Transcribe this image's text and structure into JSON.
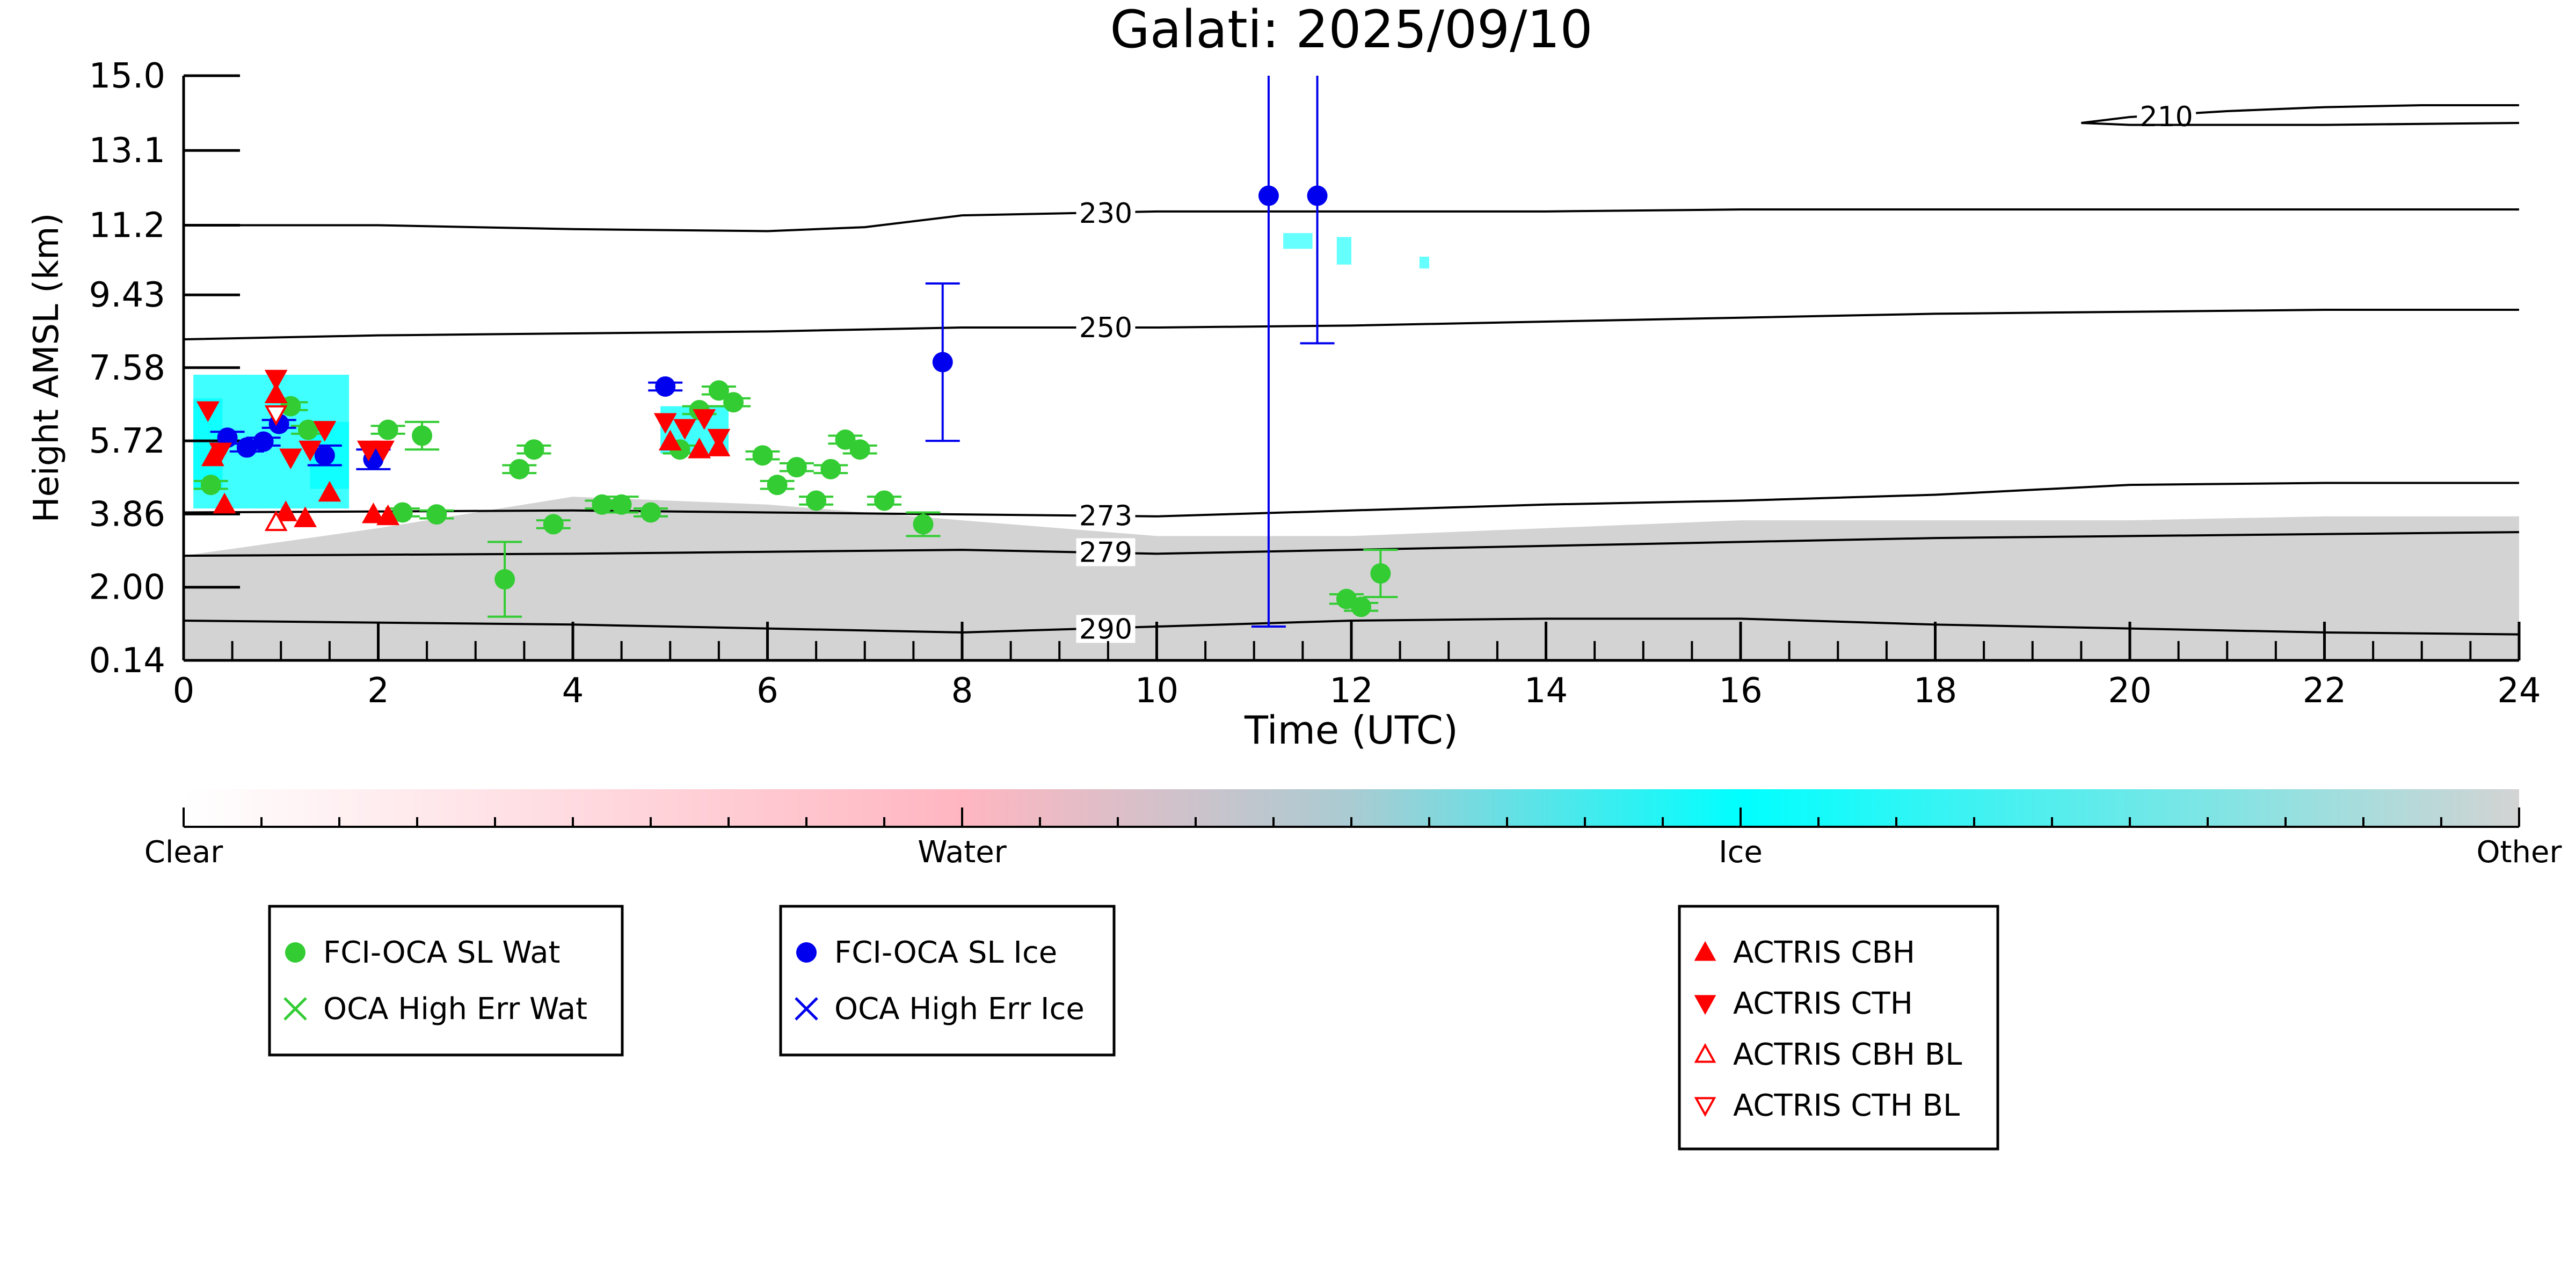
{
  "chart_data": {
    "type": "scatter",
    "title": "Galati: 2025/09/10",
    "xlabel": "Time (UTC)",
    "ylabel": "Height AMSL (km)",
    "xlim": [
      0,
      24
    ],
    "ylim": [
      0.14,
      15.0
    ],
    "x_ticks": [
      0,
      2,
      4,
      6,
      8,
      10,
      12,
      14,
      16,
      18,
      20,
      22,
      24
    ],
    "y_ticks": [
      0.14,
      2.0,
      3.86,
      5.72,
      7.58,
      9.43,
      11.2,
      13.1,
      15.0
    ],
    "y_tick_labels": [
      "0.14",
      "2.00",
      "3.86",
      "5.72",
      "7.58",
      "9.43",
      "11.2",
      "13.1",
      "15.0"
    ],
    "grid": false,
    "isotherms": [
      {
        "label": "290",
        "label_x": 9.2,
        "points": [
          [
            0,
            1.15
          ],
          [
            4,
            1.05
          ],
          [
            6,
            0.95
          ],
          [
            8,
            0.85
          ],
          [
            10,
            1.0
          ],
          [
            12,
            1.15
          ],
          [
            14,
            1.2
          ],
          [
            16,
            1.2
          ],
          [
            18,
            1.05
          ],
          [
            20,
            0.95
          ],
          [
            22,
            0.85
          ],
          [
            24,
            0.8
          ]
        ]
      },
      {
        "label": "279",
        "label_x": 9.2,
        "points": [
          [
            0,
            2.8
          ],
          [
            4,
            2.85
          ],
          [
            6,
            2.9
          ],
          [
            8,
            2.95
          ],
          [
            10,
            2.85
          ],
          [
            12,
            2.95
          ],
          [
            14,
            3.05
          ],
          [
            16,
            3.15
          ],
          [
            18,
            3.25
          ],
          [
            20,
            3.3
          ],
          [
            22,
            3.35
          ],
          [
            24,
            3.4
          ]
        ]
      },
      {
        "label": "273",
        "label_x": 9.2,
        "points": [
          [
            0,
            3.9
          ],
          [
            4,
            3.95
          ],
          [
            6,
            3.9
          ],
          [
            8,
            3.85
          ],
          [
            10,
            3.8
          ],
          [
            12,
            3.95
          ],
          [
            14,
            4.1
          ],
          [
            16,
            4.2
          ],
          [
            18,
            4.35
          ],
          [
            20,
            4.6
          ],
          [
            22,
            4.65
          ],
          [
            24,
            4.65
          ]
        ]
      },
      {
        "label": "250",
        "label_x": 9.2,
        "points": [
          [
            0,
            8.3
          ],
          [
            2,
            8.4
          ],
          [
            4,
            8.45
          ],
          [
            6,
            8.5
          ],
          [
            8,
            8.6
          ],
          [
            10,
            8.6
          ],
          [
            12,
            8.65
          ],
          [
            14,
            8.75
          ],
          [
            16,
            8.85
          ],
          [
            18,
            8.95
          ],
          [
            20,
            9.0
          ],
          [
            22,
            9.05
          ],
          [
            24,
            9.05
          ]
        ]
      },
      {
        "label": "230",
        "label_x": 9.2,
        "points": [
          [
            0,
            11.2
          ],
          [
            2,
            11.2
          ],
          [
            4,
            11.1
          ],
          [
            6,
            11.05
          ],
          [
            7,
            11.15
          ],
          [
            8,
            11.45
          ],
          [
            9,
            11.5
          ],
          [
            10,
            11.55
          ],
          [
            12,
            11.55
          ],
          [
            14,
            11.55
          ],
          [
            16,
            11.6
          ],
          [
            18,
            11.6
          ],
          [
            20,
            11.6
          ],
          [
            22,
            11.6
          ],
          [
            24,
            11.6
          ]
        ]
      },
      {
        "label": "210",
        "label_x": 20.1,
        "points": [
          [
            19.5,
            13.8
          ],
          [
            20,
            13.95
          ],
          [
            21,
            14.1
          ],
          [
            22,
            14.2
          ],
          [
            23,
            14.25
          ],
          [
            24,
            14.25
          ]
        ]
      },
      {
        "label": "",
        "label_x": 0,
        "points": [
          [
            19.5,
            13.8
          ],
          [
            20,
            13.75
          ],
          [
            22,
            13.75
          ],
          [
            24,
            13.8
          ]
        ]
      }
    ],
    "colorbar": {
      "labels": [
        "Clear",
        "Water",
        "Ice",
        "Other"
      ],
      "stops": [
        {
          "pos": 0.0,
          "color": "#ffffff"
        },
        {
          "pos": 0.333,
          "color": "#ffb6c1"
        },
        {
          "pos": 0.5,
          "color": "#aacbd2"
        },
        {
          "pos": 0.667,
          "color": "#00ffff"
        },
        {
          "pos": 1.0,
          "color": "#d3d3d3"
        }
      ]
    },
    "background_colors": {
      "other": "#d3d3d3",
      "ice": "#00ffff",
      "water": "#ffb6c1"
    },
    "series": [
      {
        "name": "FCI-OCA SL Wat",
        "marker": "circle",
        "color": "#33cc33",
        "points": [
          {
            "x": 0.28,
            "y": 4.6,
            "err": 0.1
          },
          {
            "x": 1.1,
            "y": 6.6,
            "err": 0.1
          },
          {
            "x": 1.28,
            "y": 6.0,
            "err": 0.1
          },
          {
            "x": 2.1,
            "y": 6.0,
            "err": 0.1
          },
          {
            "x": 2.45,
            "y": 5.85,
            "err": 0.35
          },
          {
            "x": 2.25,
            "y": 3.9,
            "err": 0.1
          },
          {
            "x": 2.6,
            "y": 3.85,
            "err": 0.1
          },
          {
            "x": 3.3,
            "y": 2.2,
            "err": 0.95
          },
          {
            "x": 3.45,
            "y": 5.0,
            "err": 0.1
          },
          {
            "x": 3.6,
            "y": 5.5,
            "err": 0.1
          },
          {
            "x": 3.8,
            "y": 3.6,
            "err": 0.1
          },
          {
            "x": 4.3,
            "y": 4.1,
            "err": 0.1
          },
          {
            "x": 4.5,
            "y": 4.1,
            "err": 0.2
          },
          {
            "x": 4.8,
            "y": 3.9,
            "err": 0.1
          },
          {
            "x": 5.1,
            "y": 5.5,
            "err": 0.1
          },
          {
            "x": 5.3,
            "y": 6.5,
            "err": 0.1
          },
          {
            "x": 5.5,
            "y": 7.0,
            "err": 0.1
          },
          {
            "x": 5.65,
            "y": 6.7,
            "err": 0.1
          },
          {
            "x": 5.95,
            "y": 5.35,
            "err": 0.1
          },
          {
            "x": 6.1,
            "y": 4.6,
            "err": 0.1
          },
          {
            "x": 6.3,
            "y": 5.05,
            "err": 0.1
          },
          {
            "x": 6.5,
            "y": 4.2,
            "err": 0.1
          },
          {
            "x": 6.65,
            "y": 5.0,
            "err": 0.1
          },
          {
            "x": 6.8,
            "y": 5.75,
            "err": 0.1
          },
          {
            "x": 6.95,
            "y": 5.5,
            "err": 0.1
          },
          {
            "x": 7.2,
            "y": 4.2,
            "err": 0.1
          },
          {
            "x": 7.6,
            "y": 3.6,
            "err": 0.3
          },
          {
            "x": 11.95,
            "y": 1.7,
            "err": 0.12
          },
          {
            "x": 12.1,
            "y": 1.5,
            "err": 0.1
          },
          {
            "x": 12.3,
            "y": 2.35,
            "err": 0.6
          }
        ]
      },
      {
        "name": "OCA High Err Wat",
        "marker": "x",
        "color": "#33cc33",
        "points": []
      },
      {
        "name": "FCI-OCA SL Ice",
        "marker": "circle",
        "color": "#0000ee",
        "points": [
          {
            "x": 0.45,
            "y": 5.8,
            "err": 0.15
          },
          {
            "x": 0.65,
            "y": 5.55,
            "err": 0.1
          },
          {
            "x": 0.82,
            "y": 5.7,
            "err": 0.1
          },
          {
            "x": 0.98,
            "y": 6.15,
            "err": 0.1
          },
          {
            "x": 1.45,
            "y": 5.35,
            "err": 0.25
          },
          {
            "x": 1.95,
            "y": 5.25,
            "err": 0.25
          },
          {
            "x": 4.95,
            "y": 7.1,
            "err": 0.1
          },
          {
            "x": 7.8,
            "y": 7.72,
            "err": 2.0
          },
          {
            "x": 11.15,
            "y": 11.95,
            "err_up": 3.05,
            "err_down": 10.95
          },
          {
            "x": 11.65,
            "y": 11.95,
            "err_up": 3.05,
            "err_down": 3.75
          }
        ]
      },
      {
        "name": "OCA High Err Ice",
        "marker": "x",
        "color": "#0000ee",
        "points": []
      },
      {
        "name": "ACTRIS CBH",
        "marker": "triangle-up",
        "color": "#ff0000",
        "filled": true,
        "points": [
          {
            "x": 0.3,
            "y": 5.3
          },
          {
            "x": 0.42,
            "y": 4.1
          },
          {
            "x": 0.95,
            "y": 6.9
          },
          {
            "x": 1.05,
            "y": 3.9
          },
          {
            "x": 1.25,
            "y": 3.75
          },
          {
            "x": 1.5,
            "y": 4.4
          },
          {
            "x": 1.95,
            "y": 3.85
          },
          {
            "x": 2.1,
            "y": 3.8
          },
          {
            "x": 5.0,
            "y": 5.7
          },
          {
            "x": 5.3,
            "y": 5.5
          },
          {
            "x": 5.5,
            "y": 5.55
          }
        ]
      },
      {
        "name": "ACTRIS CTH",
        "marker": "triangle-down",
        "color": "#ff0000",
        "filled": true,
        "points": [
          {
            "x": 0.25,
            "y": 6.5
          },
          {
            "x": 0.38,
            "y": 5.45
          },
          {
            "x": 0.95,
            "y": 7.3
          },
          {
            "x": 1.1,
            "y": 5.3
          },
          {
            "x": 1.3,
            "y": 5.5
          },
          {
            "x": 1.45,
            "y": 6.0
          },
          {
            "x": 1.9,
            "y": 5.5
          },
          {
            "x": 2.05,
            "y": 5.5
          },
          {
            "x": 4.95,
            "y": 6.2
          },
          {
            "x": 5.15,
            "y": 6.05
          },
          {
            "x": 5.35,
            "y": 6.3
          },
          {
            "x": 5.5,
            "y": 5.8
          }
        ]
      },
      {
        "name": "ACTRIS CBH BL",
        "marker": "triangle-up",
        "color": "#ff0000",
        "filled": false,
        "points": [
          {
            "x": 0.95,
            "y": 3.65
          }
        ]
      },
      {
        "name": "ACTRIS CTH BL",
        "marker": "triangle-down",
        "color": "#ff0000",
        "filled": false,
        "points": [
          {
            "x": 0.95,
            "y": 6.4
          }
        ]
      }
    ],
    "legends": [
      {
        "entries": [
          "FCI-OCA SL Wat",
          "OCA High Err Wat"
        ]
      },
      {
        "entries": [
          "FCI-OCA SL Ice",
          "OCA High Err Ice"
        ]
      },
      {
        "entries": [
          "ACTRIS CBH",
          "ACTRIS CTH",
          "ACTRIS CBH BL",
          "ACTRIS CTH BL"
        ]
      }
    ]
  }
}
